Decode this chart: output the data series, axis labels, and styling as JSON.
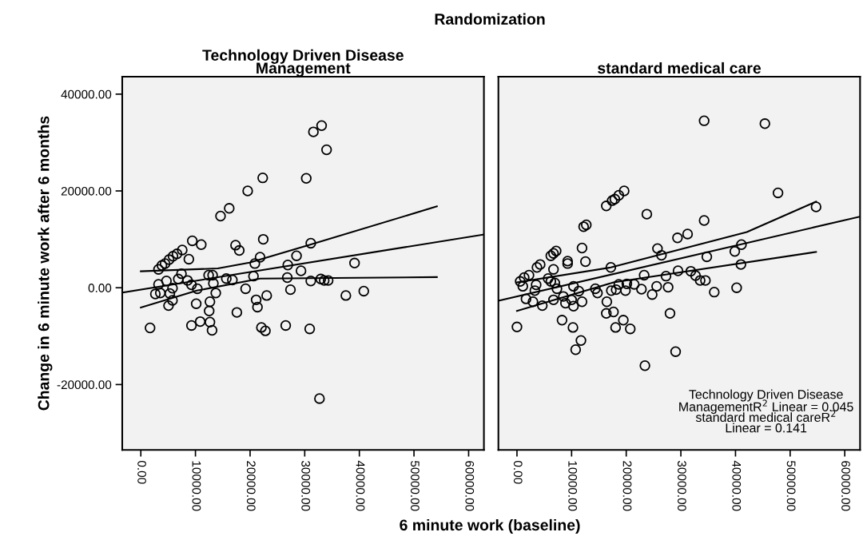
{
  "chart_data": [
    {
      "type": "scatter",
      "title": "Technology Driven Disease\nManagement",
      "subtitle": "Randomization",
      "xlabel": "6 minute work (baseline)",
      "ylabel": "Change in 6 minute work after 6 months",
      "xlim": [
        -3400,
        62800
      ],
      "ylim": [
        -33500,
        43600
      ],
      "xticks": [
        {
          "value": 0,
          "label": "0.00"
        },
        {
          "value": 10000,
          "label": "10000.00"
        },
        {
          "value": 20000,
          "label": "20000.00"
        },
        {
          "value": 30000,
          "label": "30000.00"
        },
        {
          "value": 40000,
          "label": "40000.00"
        },
        {
          "value": 50000,
          "label": "50000.00"
        },
        {
          "value": 60000,
          "label": "60000.00"
        }
      ],
      "yticks": [
        {
          "value": -20000,
          "label": "-20000.00"
        },
        {
          "value": 0,
          "label": "0.00"
        },
        {
          "value": 20000,
          "label": "20000.00"
        },
        {
          "value": 40000,
          "label": "40000.00"
        }
      ],
      "grid": false,
      "legend": false,
      "series": [
        {
          "marker": "circle",
          "color": "#000000",
          "x": [
            1690,
            33090,
            31590,
            34000,
            22310,
            30280,
            19560,
            16180,
            14590,
            9420,
            11060,
            22410,
            17340,
            18020,
            31110,
            7580,
            6620,
            5890,
            5170,
            4440,
            3860,
            3240,
            8790,
            21830,
            20870,
            28500,
            26900,
            39120,
            29320,
            7440,
            12410,
            13140,
            20620,
            26810,
            15650,
            16760,
            6860,
            8550,
            4690,
            3240,
            13280,
            31110,
            32940,
            33570,
            34290,
            9270,
            5800,
            10340,
            19180,
            27390,
            2660,
            3570,
            5310,
            13720,
            40810,
            37530,
            23040,
            10140,
            12650,
            21110,
            21350,
            5800,
            5070,
            12510,
            17580,
            9270,
            10870,
            12650,
            13040,
            22070,
            22800,
            26520,
            30910,
            32700
          ],
          "values": [
            -8300,
            33500,
            32200,
            28500,
            22700,
            22600,
            20000,
            16400,
            14800,
            9700,
            8900,
            10000,
            8800,
            7700,
            9200,
            7800,
            7000,
            6500,
            5800,
            5000,
            4600,
            3800,
            5900,
            6300,
            5000,
            6600,
            4700,
            5100,
            3500,
            2900,
            2600,
            2600,
            2400,
            2100,
            1900,
            1600,
            1800,
            1500,
            1400,
            700,
            900,
            1400,
            1800,
            1500,
            1500,
            600,
            -100,
            -200,
            -200,
            -400,
            -1300,
            -1100,
            -1200,
            -1100,
            -700,
            -1600,
            -1600,
            -3300,
            -2900,
            -2500,
            -4000,
            -2600,
            -3700,
            -4800,
            -5100,
            -7800,
            -7000,
            -7100,
            -8800,
            -8200,
            -8900,
            -7800,
            -8500,
            -22900
          ]
        },
        {
          "type": "line",
          "color": "#000000",
          "x": [
            -3400,
            62800
          ],
          "values": [
            -1000,
            11000
          ]
        },
        {
          "type": "line",
          "color": "#000000",
          "x": [
            0,
            10240,
            21830,
            54190
          ],
          "values": [
            -4100,
            -600,
            1900,
            2200
          ]
        },
        {
          "type": "line",
          "color": "#000000",
          "x": [
            0,
            14100,
            19900,
            31010,
            54190
          ],
          "values": [
            3400,
            4000,
            5200,
            8900,
            16800
          ]
        }
      ]
    },
    {
      "type": "scatter",
      "title": "standard medical care",
      "tick_labels": "x",
      "xlim": [
        -3400,
        62800
      ],
      "ylim": [
        -33500,
        43600
      ],
      "xticks": [
        {
          "value": 0,
          "label": "0.00"
        },
        {
          "value": 10000,
          "label": "10000.00"
        },
        {
          "value": 20000,
          "label": "20000.00"
        },
        {
          "value": 30000,
          "label": "30000.00"
        },
        {
          "value": 40000,
          "label": "40000.00"
        },
        {
          "value": 50000,
          "label": "50000.00"
        },
        {
          "value": 60000,
          "label": "60000.00"
        }
      ],
      "yticks": [
        {
          "value": -20000,
          "label": null
        },
        {
          "value": 0,
          "label": null
        },
        {
          "value": 20000,
          "label": null
        },
        {
          "value": 40000,
          "label": null
        }
      ],
      "grid": false,
      "legend": false,
      "annotations": [
        "Technology Driven Disease\nManagementR$^{2}$ Linear = 0.045\nstandard medical careR$^{2}$\nLinear = 0.141"
      ],
      "series": [
        {
          "marker": "circle",
          "color": "#000000",
          "x": [
            0,
            34260,
            45380,
            47780,
            54750,
            19620,
            18640,
            17910,
            17420,
            16350,
            23770,
            34260,
            12690,
            12200,
            31230,
            29380,
            7170,
            6690,
            6200,
            11910,
            25720,
            26450,
            41090,
            39870,
            34750,
            40990,
            9270,
            9270,
            12540,
            6690,
            4250,
            3660,
            2200,
            1320,
            590,
            17180,
            29480,
            31820,
            32690,
            33530,
            34500,
            23280,
            27280,
            5710,
            6200,
            6930,
            3510,
            3270,
            1070,
            10350,
            7320,
            14350,
            18640,
            20110,
            21470,
            25570,
            27670,
            11320,
            14740,
            17270,
            18150,
            19860,
            22790,
            24750,
            36110,
            40210,
            1660,
            2930,
            4640,
            6690,
            8490,
            8880,
            10350,
            10000,
            11910,
            16450,
            16350,
            17670,
            28010,
            8250,
            10250,
            19470,
            18050,
            20740,
            11710,
            10740,
            29040,
            23420
          ],
          "values": [
            -8100,
            34500,
            33900,
            19600,
            16700,
            20000,
            19100,
            18300,
            18000,
            16900,
            15200,
            13900,
            13000,
            12600,
            11100,
            10300,
            7600,
            7100,
            6600,
            8200,
            8100,
            6700,
            8900,
            7500,
            6400,
            4800,
            5500,
            5000,
            5400,
            3800,
            4800,
            4200,
            2600,
            2100,
            1300,
            4200,
            3500,
            3400,
            2500,
            1500,
            1500,
            2600,
            2400,
            1900,
            1300,
            1000,
            600,
            -600,
            300,
            300,
            -200,
            -200,
            700,
            800,
            700,
            300,
            100,
            -700,
            -1100,
            -600,
            -400,
            -600,
            -300,
            -1400,
            -900,
            0,
            -2300,
            -2900,
            -3700,
            -2500,
            -1800,
            -3200,
            -3800,
            -2500,
            -2900,
            -2900,
            -5300,
            -5000,
            -5300,
            -6700,
            -8200,
            -6700,
            -8200,
            -8500,
            -10900,
            -12800,
            -13200,
            -16100
          ]
        },
        {
          "type": "line",
          "color": "#000000",
          "x": [
            -3400,
            62800
          ],
          "values": [
            -2700,
            14700
          ]
        },
        {
          "type": "line",
          "color": "#000000",
          "x": [
            0,
            17670,
            54750
          ],
          "values": [
            -4800,
            1100,
            7400
          ]
        },
        {
          "type": "line",
          "color": "#000000",
          "x": [
            0,
            17180,
            42070,
            54750
          ],
          "values": [
            1100,
            4200,
            11500,
            17800
          ]
        }
      ]
    }
  ]
}
